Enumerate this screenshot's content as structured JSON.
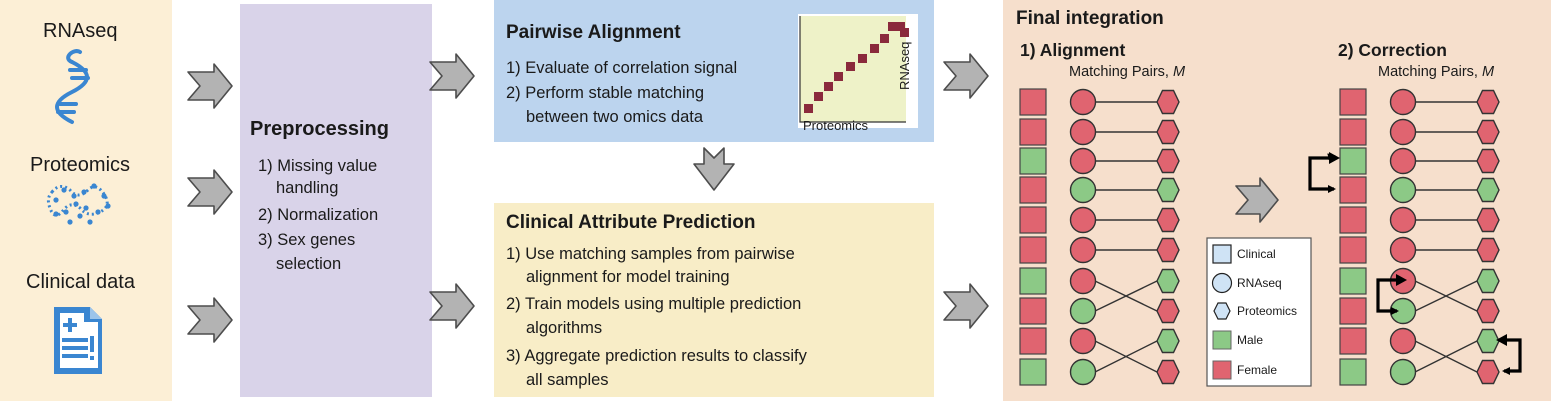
{
  "inputs": {
    "rnaseq": "RNAseq",
    "proteomics": "Proteomics",
    "clinical": "Clinical data"
  },
  "preprocessing": {
    "title": "Preprocessing",
    "steps": [
      "1) Missing value",
      "handling",
      "2) Normalization",
      "3) Sex genes",
      "selection"
    ]
  },
  "pairwise": {
    "title": "Pairwise Alignment",
    "steps": [
      "1) Evaluate of correlation signal",
      "2) Perform stable matching",
      "between two omics data"
    ],
    "matrix_x_label": "Proteomics",
    "matrix_y_label": "RNAseq"
  },
  "clinical_prediction": {
    "title": "Clinical Attribute Prediction",
    "steps": [
      "1) Use matching samples from pairwise",
      "alignment for model training",
      "2) Train models using multiple prediction",
      "algorithms",
      "3) Aggregate prediction results to classify",
      "all samples"
    ]
  },
  "final": {
    "title": "Final integration",
    "alignment_title": "1) Alignment",
    "correction_title": "2) Correction",
    "matching_pairs": "Matching Pairs, ",
    "matching_pairs_var": "M",
    "legend": [
      "Clinical",
      "RNAseq",
      "Proteomics",
      "Male",
      "Female"
    ]
  },
  "colors": {
    "male": "#8cc986",
    "female": "#e06470",
    "clinical_legend": "#cfe3f5",
    "arrow": "#b3b3b3",
    "icon_blue": "#3a86d1",
    "matrix_bg": "#eef2c8",
    "matrix_cell": "#8a2a3c"
  },
  "alignment": {
    "clinical": [
      "F",
      "F",
      "M",
      "F",
      "F",
      "F",
      "M",
      "F",
      "F",
      "M"
    ],
    "rnaseq": [
      "F",
      "F",
      "F",
      "M",
      "F",
      "F",
      "F",
      "M",
      "F",
      "M"
    ],
    "proteomics": [
      "F",
      "F",
      "F",
      "M",
      "F",
      "F",
      "M",
      "F",
      "M",
      "F"
    ]
  },
  "correction": {
    "clinical": [
      "F",
      "F",
      "M",
      "F",
      "F",
      "F",
      "M",
      "F",
      "F",
      "M"
    ],
    "rnaseq": [
      "F",
      "F",
      "F",
      "M",
      "F",
      "F",
      "F",
      "M",
      "F",
      "M"
    ],
    "proteomics": [
      "F",
      "F",
      "F",
      "M",
      "F",
      "F",
      "M",
      "F",
      "M",
      "F"
    ]
  }
}
